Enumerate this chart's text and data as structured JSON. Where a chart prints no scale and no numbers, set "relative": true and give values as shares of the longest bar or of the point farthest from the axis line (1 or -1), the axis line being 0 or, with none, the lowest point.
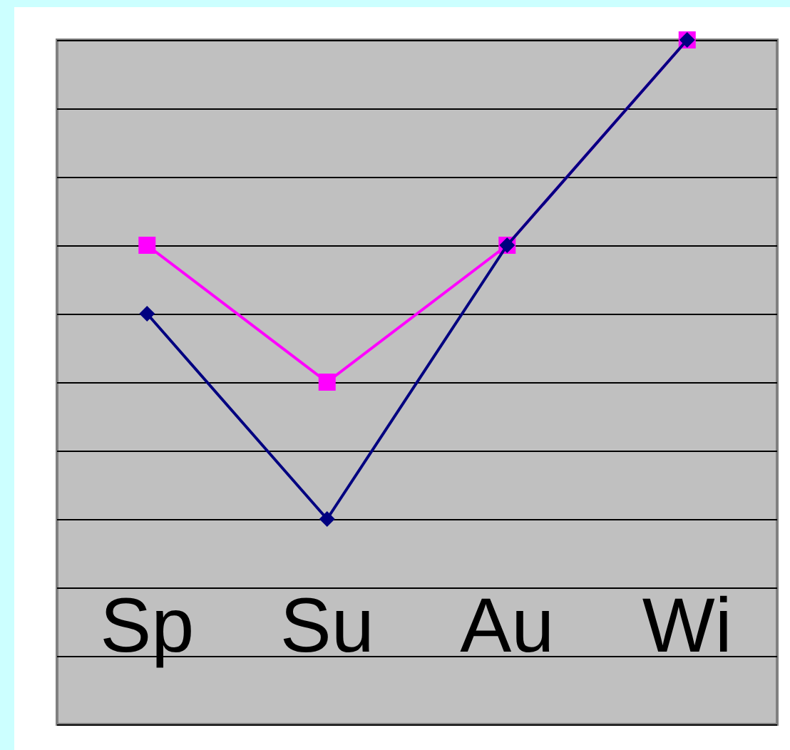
{
  "chart_data": {
    "type": "line",
    "relative": true,
    "categories": [
      "Sp",
      "Su",
      "Au",
      "Wi"
    ],
    "grid": "y",
    "series": [
      {
        "color": "#000080",
        "marker": "diamond",
        "values": [
          0.6,
          0.3,
          0.7,
          1
        ]
      },
      {
        "color": "#ff00ff",
        "marker": "square",
        "values": [
          0.7,
          0.5,
          0.7,
          1
        ]
      }
    ]
  }
}
